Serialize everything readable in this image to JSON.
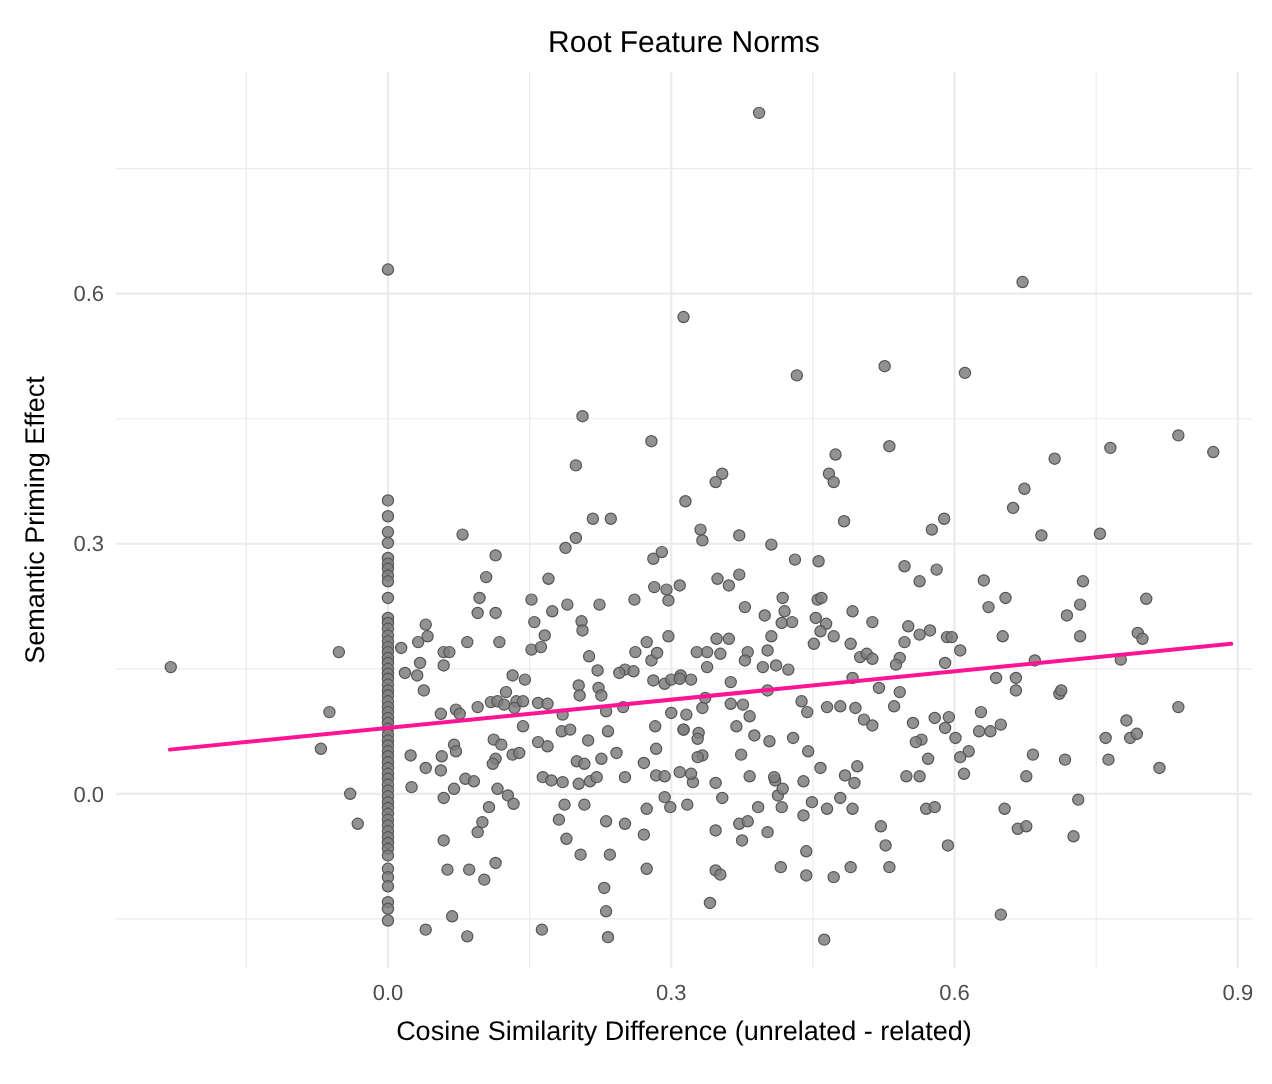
{
  "chart_data": {
    "type": "scatter",
    "title": "Root Feature Norms",
    "xlabel": "Cosine Similarity Difference (unrelated - related)",
    "ylabel": "Semantic Priming Effect",
    "xlim": [
      -0.288,
      0.915
    ],
    "ylim": [
      -0.209,
      0.866
    ],
    "xticks": [
      {
        "value": -0.15,
        "label": null
      },
      {
        "value": 0,
        "label": "0.0"
      },
      {
        "value": 0.15,
        "label": null
      },
      0.3,
      {
        "value": 0.45,
        "label": null
      },
      0.6,
      {
        "value": 0.75,
        "label": null
      },
      0.9
    ],
    "yticks": [
      {
        "value": -0.15,
        "label": null
      },
      {
        "value": 0,
        "label": "0.0"
      },
      {
        "value": 0.15,
        "label": null
      },
      0.3,
      {
        "value": 0.45,
        "label": null
      },
      0.6,
      {
        "value": 0.75,
        "label": null
      }
    ],
    "grid": true,
    "marker": "circle",
    "series": [
      {
        "color": "#7f7f7f",
        "x": [
          0,
          0,
          0,
          0,
          0,
          0,
          0,
          0,
          0,
          0,
          0,
          0,
          0,
          0,
          0,
          0,
          0,
          0,
          0,
          0,
          0,
          0,
          0,
          0,
          0,
          0,
          0,
          0,
          0,
          0,
          0,
          0,
          0,
          0,
          0,
          0,
          0,
          0,
          0,
          0,
          0,
          0,
          0,
          0,
          0,
          0,
          0,
          0,
          0,
          0,
          0,
          0,
          0,
          0,
          0,
          0,
          0,
          0,
          0,
          0,
          0.313,
          0.206,
          0.279,
          0.199,
          0.217,
          0.236,
          0.315,
          0.393,
          0.433,
          0.526,
          0.611,
          0.672,
          0.531,
          0.474,
          0.467,
          0.472,
          0.354,
          0.347,
          0.483,
          0.589,
          0.576,
          0.662,
          0.674,
          0.706,
          0.765,
          0.837,
          0.874,
          0.331,
          -0.23,
          -0.052,
          -0.062,
          -0.071,
          -0.04,
          -0.032,
          0.014,
          0.032,
          0.04,
          0.042,
          0.018,
          0.034,
          0.031,
          0.038,
          0.059,
          0.065,
          0.059,
          0.079,
          0.084,
          0.097,
          0.104,
          0.114,
          0.095,
          0.114,
          0.118,
          0.056,
          0.072,
          0.076,
          0.095,
          0.109,
          0.116,
          0.125,
          0.132,
          0.136,
          0.145,
          0.123,
          0.134,
          0.024,
          0.025,
          0.04,
          0.057,
          0.056,
          0.07,
          0.072,
          0.059,
          0.07,
          0.082,
          0.091,
          0.059,
          0.063,
          0.086,
          0.095,
          0.1,
          0.107,
          0.102,
          0.114,
          0.068,
          0.04,
          0.084,
          0.112,
          0.114,
          0.12,
          0.132,
          0.139,
          0.111,
          0.116,
          0.127,
          0.133,
          0.152,
          0.155,
          0.17,
          0.174,
          0.152,
          0.166,
          0.162,
          0.143,
          0.159,
          0.169,
          0.143,
          0.159,
          0.169,
          0.185,
          0.188,
          0.199,
          0.19,
          0.205,
          0.206,
          0.224,
          0.213,
          0.222,
          0.202,
          0.203,
          0.223,
          0.226,
          0.184,
          0.193,
          0.212,
          0.231,
          0.233,
          0.164,
          0.173,
          0.185,
          0.202,
          0.2,
          0.208,
          0.214,
          0.221,
          0.226,
          0.187,
          0.208,
          0.181,
          0.189,
          0.204,
          0.231,
          0.235,
          0.229,
          0.231,
          0.233,
          0.163,
          0.242,
          0.251,
          0.251,
          0.271,
          0.274,
          0.274,
          0.284,
          0.293,
          0.293,
          0.299,
          0.271,
          0.284,
          0.283,
          0.313,
          0.3,
          0.249,
          0.251,
          0.26,
          0.245,
          0.262,
          0.274,
          0.279,
          0.285,
          0.297,
          0.281,
          0.293,
          0.3,
          0.31,
          0.261,
          0.282,
          0.295,
          0.297,
          0.281,
          0.29,
          0.309,
          0.333,
          0.372,
          0.406,
          0.431,
          0.456,
          0.692,
          0.754,
          0.349,
          0.361,
          0.372,
          0.378,
          0.399,
          0.418,
          0.42,
          0.417,
          0.428,
          0.455,
          0.459,
          0.453,
          0.464,
          0.458,
          0.472,
          0.451,
          0.492,
          0.513,
          0.49,
          0.5,
          0.507,
          0.513,
          0.547,
          0.563,
          0.581,
          0.551,
          0.563,
          0.574,
          0.547,
          0.592,
          0.597,
          0.606,
          0.542,
          0.538,
          0.59,
          0.631,
          0.636,
          0.654,
          0.651,
          0.644,
          0.665,
          0.665,
          0.685,
          0.719,
          0.733,
          0.736,
          0.733,
          0.803,
          0.794,
          0.799,
          0.776,
          0.711,
          0.713,
          0.837,
          0.782,
          0.76,
          0.786,
          0.793,
          0.763,
          0.817,
          0.717,
          0.683,
          0.676,
          0.731,
          0.726,
          0.653,
          0.667,
          0.676,
          0.649,
          0.628,
          0.626,
          0.638,
          0.649,
          0.615,
          0.606,
          0.61,
          0.594,
          0.59,
          0.601,
          0.579,
          0.556,
          0.565,
          0.559,
          0.572,
          0.549,
          0.563,
          0.57,
          0.579,
          0.593,
          0.542,
          0.536,
          0.52,
          0.492,
          0.495,
          0.479,
          0.465,
          0.504,
          0.513,
          0.438,
          0.444,
          0.429,
          0.445,
          0.458,
          0.497,
          0.484,
          0.494,
          0.44,
          0.449,
          0.465,
          0.479,
          0.492,
          0.44,
          0.522,
          0.527,
          0.443,
          0.531,
          0.49,
          0.443,
          0.472,
          0.416,
          0.462,
          0.341,
          0.347,
          0.352,
          0.347,
          0.372,
          0.381,
          0.375,
          0.402,
          0.392,
          0.417,
          0.413,
          0.41,
          0.418,
          0.409,
          0.354,
          0.317,
          0.323,
          0.347,
          0.321,
          0.383,
          0.374,
          0.388,
          0.404,
          0.369,
          0.383,
          0.376,
          0.363,
          0.363,
          0.402,
          0.397,
          0.411,
          0.424,
          0.402,
          0.406,
          0.381,
          0.378,
          0.361,
          0.348,
          0.352,
          0.338,
          0.338,
          0.327,
          0.336,
          0.333,
          0.316,
          0.313,
          0.329,
          0.328,
          0.333,
          0.328,
          0.309,
          0.321,
          0.309
        ],
        "values": [
          0.629,
          0.352,
          0.333,
          0.314,
          0.301,
          0.283,
          0.276,
          0.27,
          0.262,
          0.255,
          0.235,
          0.211,
          0.205,
          0.198,
          0.19,
          0.183,
          0.176,
          0.17,
          0.163,
          0.157,
          0.15,
          0.144,
          0.138,
          0.131,
          0.124,
          0.118,
          0.111,
          0.104,
          0.098,
          0.091,
          0.085,
          0.078,
          0.071,
          0.064,
          0.058,
          0.051,
          0.045,
          0.038,
          0.031,
          0.024,
          0.018,
          0.011,
          0.004,
          -0.003,
          -0.01,
          -0.017,
          -0.024,
          -0.031,
          -0.038,
          -0.045,
          -0.052,
          -0.059,
          -0.066,
          -0.074,
          -0.09,
          -0.1,
          -0.111,
          -0.13,
          -0.138,
          -0.152,
          0.572,
          0.453,
          0.423,
          0.394,
          0.33,
          0.33,
          0.351,
          0.817,
          0.502,
          0.513,
          0.505,
          0.614,
          0.417,
          0.407,
          0.384,
          0.374,
          0.384,
          0.374,
          0.327,
          0.33,
          0.317,
          0.343,
          0.366,
          0.402,
          0.415,
          0.43,
          0.41,
          0.317,
          0.152,
          0.17,
          0.098,
          0.054,
          0,
          -0.036,
          0.175,
          0.182,
          0.203,
          0.189,
          0.145,
          0.157,
          0.142,
          0.124,
          0.17,
          0.17,
          0.154,
          0.311,
          0.182,
          0.235,
          0.26,
          0.286,
          0.217,
          0.217,
          0.182,
          0.096,
          0.101,
          0.096,
          0.104,
          0.11,
          0.111,
          0.122,
          0.142,
          0.111,
          0.137,
          0.107,
          0.103,
          0.046,
          0.008,
          0.031,
          0.045,
          0.028,
          0.059,
          0.051,
          -0.005,
          0.006,
          0.018,
          0.015,
          -0.056,
          -0.091,
          -0.091,
          -0.046,
          -0.034,
          -0.016,
          -0.103,
          -0.083,
          -0.147,
          -0.163,
          -0.171,
          0.065,
          0.042,
          0.059,
          0.047,
          0.049,
          0.036,
          0.006,
          -0.002,
          -0.012,
          0.233,
          0.206,
          0.258,
          0.219,
          0.173,
          0.19,
          0.176,
          0.111,
          0.109,
          0.108,
          0.081,
          0.062,
          0.057,
          0.095,
          0.295,
          0.307,
          0.227,
          0.207,
          0.196,
          0.227,
          0.165,
          0.148,
          0.13,
          0.118,
          0.127,
          0.118,
          0.075,
          0.077,
          0.064,
          0.099,
          0.075,
          0.02,
          0.016,
          0.014,
          0.012,
          0.039,
          0.036,
          0.015,
          0.02,
          0.042,
          -0.013,
          -0.013,
          -0.031,
          -0.054,
          -0.073,
          -0.033,
          -0.073,
          -0.113,
          -0.141,
          -0.172,
          -0.163,
          0.049,
          0.02,
          -0.036,
          -0.049,
          -0.09,
          -0.018,
          0.022,
          0.021,
          -0.004,
          -0.016,
          0.037,
          0.054,
          0.081,
          0.077,
          0.097,
          0.104,
          0.149,
          0.147,
          0.145,
          0.17,
          0.182,
          0.16,
          0.169,
          0.189,
          0.136,
          0.132,
          0.137,
          0.142,
          0.233,
          0.248,
          0.245,
          0.232,
          0.282,
          0.29,
          0.25,
          0.304,
          0.31,
          0.299,
          0.281,
          0.279,
          0.31,
          0.312,
          0.258,
          0.25,
          0.263,
          0.224,
          0.214,
          0.235,
          0.219,
          0.205,
          0.206,
          0.233,
          0.235,
          0.211,
          0.204,
          0.195,
          0.189,
          0.18,
          0.219,
          0.206,
          0.18,
          0.164,
          0.168,
          0.162,
          0.273,
          0.255,
          0.269,
          0.201,
          0.191,
          0.196,
          0.182,
          0.188,
          0.188,
          0.172,
          0.163,
          0.155,
          0.157,
          0.256,
          0.224,
          0.235,
          0.189,
          0.139,
          0.139,
          0.124,
          0.16,
          0.214,
          0.227,
          0.255,
          0.189,
          0.234,
          0.193,
          0.186,
          0.161,
          0.12,
          0.124,
          0.104,
          0.088,
          0.067,
          0.067,
          0.072,
          0.041,
          0.031,
          0.041,
          0.047,
          0.021,
          -0.007,
          -0.051,
          -0.018,
          -0.042,
          -0.039,
          -0.145,
          0.098,
          0.075,
          0.075,
          0.083,
          0.051,
          0.044,
          0.024,
          0.092,
          0.079,
          0.067,
          0.091,
          0.085,
          0.065,
          0.062,
          0.042,
          0.021,
          0.021,
          -0.018,
          -0.016,
          -0.062,
          0.122,
          0.105,
          0.127,
          0.139,
          0.103,
          0.105,
          0.104,
          0.089,
          0.082,
          0.111,
          0.098,
          0.067,
          0.051,
          0.031,
          0.033,
          0.022,
          0.013,
          0.015,
          -0.01,
          -0.018,
          -0.005,
          -0.018,
          -0.026,
          -0.039,
          -0.062,
          -0.069,
          -0.088,
          -0.088,
          -0.098,
          -0.1,
          -0.088,
          -0.175,
          -0.131,
          -0.092,
          -0.097,
          -0.044,
          -0.036,
          -0.033,
          -0.056,
          -0.046,
          -0.016,
          -0.016,
          -0.002,
          0.016,
          0.006,
          0.02,
          -0.005,
          -0.013,
          0.014,
          0.013,
          0.024,
          0.021,
          0.047,
          0.07,
          0.063,
          0.081,
          0.093,
          0.107,
          0.108,
          0.134,
          0.124,
          0.152,
          0.154,
          0.149,
          0.172,
          0.189,
          0.17,
          0.16,
          0.186,
          0.186,
          0.168,
          0.17,
          0.152,
          0.17,
          0.115,
          0.103,
          0.095,
          0.077,
          0.073,
          0.066,
          0.046,
          0.044,
          0.138,
          0.137,
          0.026
        ]
      },
      {
        "type": "line",
        "marker": "none",
        "color": "#ff1493",
        "x": [
          -0.231,
          0.893
        ],
        "values": [
          0.053,
          0.18
        ]
      }
    ]
  }
}
